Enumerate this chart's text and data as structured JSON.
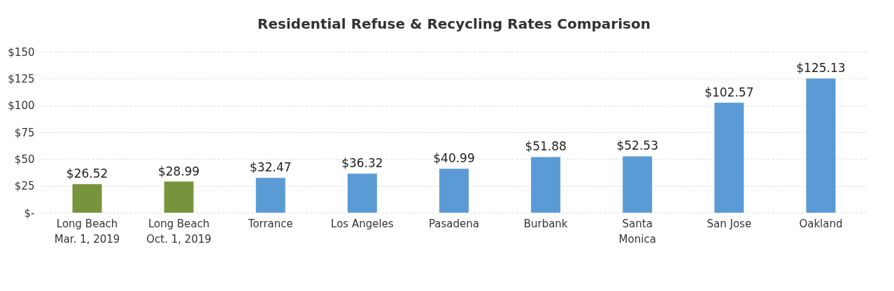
{
  "chart_data": {
    "type": "bar",
    "title": "Residential Refuse & Recycling Rates Comparison",
    "categories": [
      "Long Beach\nMar. 1, 2019",
      "Long Beach\nOct. 1, 2019",
      "Torrance",
      "Los Angeles",
      "Pasadena",
      "Burbank",
      "Santa\nMonica",
      "San Jose",
      "Oakland"
    ],
    "values": [
      26.52,
      28.99,
      32.47,
      36.32,
      40.99,
      51.88,
      52.53,
      102.57,
      125.13
    ],
    "colors": [
      "#77933c",
      "#77933c",
      "#5b9bd5",
      "#5b9bd5",
      "#5b9bd5",
      "#5b9bd5",
      "#5b9bd5",
      "#5b9bd5",
      "#5b9bd5"
    ],
    "value_labels": [
      "$26.52",
      "$28.99",
      "$32.47",
      "$36.32",
      "$40.99",
      "$51.88",
      "$52.53",
      "$102.57",
      "$125.13"
    ],
    "ylim": [
      0,
      150
    ],
    "yticks": [
      {
        "value": 0,
        "label": "$-"
      },
      {
        "value": 25,
        "label": "$25"
      },
      {
        "value": 50,
        "label": "$50"
      },
      {
        "value": 75,
        "label": "$75"
      },
      {
        "value": 100,
        "label": "$100"
      },
      {
        "value": 125,
        "label": "$125"
      },
      {
        "value": 150,
        "label": "$150"
      }
    ],
    "grid": "y"
  }
}
